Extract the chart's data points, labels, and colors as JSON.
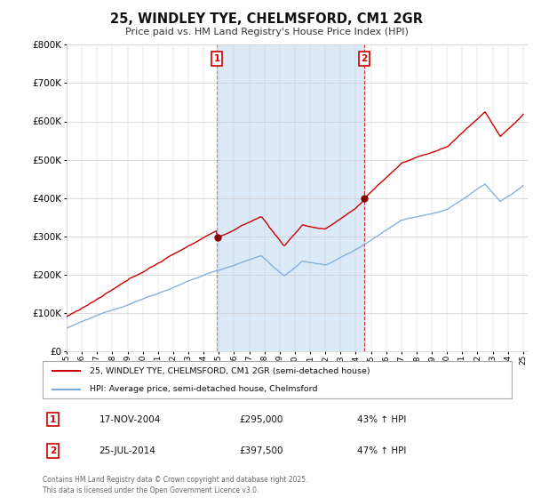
{
  "title_line1": "25, WINDLEY TYE, CHELMSFORD, CM1 2GR",
  "title_line2": "Price paid vs. HM Land Registry's House Price Index (HPI)",
  "background_color": "#ffffff",
  "plot_bg_color": "#ffffff",
  "grid_color": "#cccccc",
  "hpi_fill_color": "#dce9f7",
  "sale_color": "#cc0000",
  "hpi_color": "#7aaadd",
  "sale1_date": "17-NOV-2004",
  "sale1_price": 295000,
  "sale1_label": "43% ↑ HPI",
  "sale2_date": "25-JUL-2014",
  "sale2_price": 397500,
  "sale2_label": "47% ↑ HPI",
  "legend_label1": "25, WINDLEY TYE, CHELMSFORD, CM1 2GR (semi-detached house)",
  "legend_label2": "HPI: Average price, semi-detached house, Chelmsford",
  "footer": "Contains HM Land Registry data © Crown copyright and database right 2025.\nThis data is licensed under the Open Government Licence v3.0.",
  "ylim_max": 800000,
  "ylim_min": 0,
  "sale1_yr": 2004.88,
  "sale2_yr": 2014.56
}
